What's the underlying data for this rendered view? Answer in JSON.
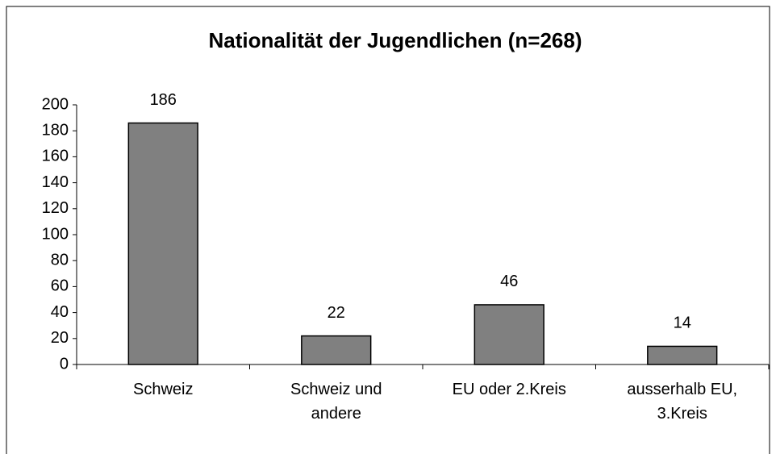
{
  "chart_data": {
    "type": "bar",
    "title": "Nationalität der Jugendlichen (n=268)",
    "categories": [
      "Schweiz",
      "Schweiz und\nandere",
      "EU oder 2.Kreis",
      "ausserhalb EU,\n3.Kreis"
    ],
    "values": [
      186,
      22,
      46,
      14
    ],
    "color": "#808080",
    "ylim": [
      0,
      200
    ],
    "yticks": [
      0,
      20,
      40,
      60,
      80,
      100,
      120,
      140,
      160,
      180,
      200
    ],
    "grid": false
  }
}
